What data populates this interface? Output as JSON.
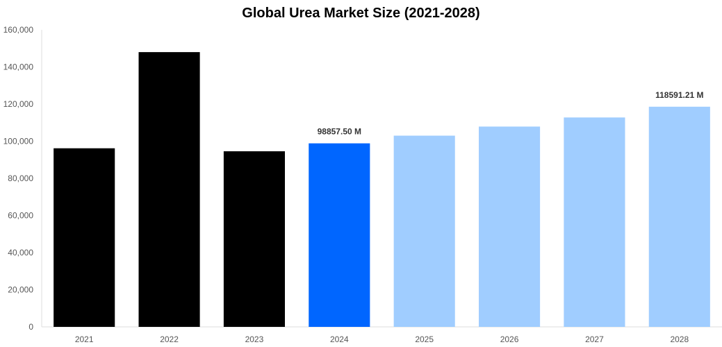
{
  "chart_data": {
    "type": "bar",
    "title": "Global Urea Market Size (2021-2028)",
    "xlabel": "",
    "ylabel": "",
    "categories": [
      "2021",
      "2022",
      "2023",
      "2024",
      "2025",
      "2026",
      "2027",
      "2028"
    ],
    "values": [
      96200,
      148000,
      94600,
      98857.5,
      103000,
      107900,
      112800,
      118591.21
    ],
    "bar_colors": [
      "#000000",
      "#000000",
      "#000000",
      "#0066ff",
      "#a0cdff",
      "#a0cdff",
      "#a0cdff",
      "#a0cdff"
    ],
    "data_labels": [
      {
        "category": "2024",
        "text": "98857.50 M"
      },
      {
        "category": "2028",
        "text": "118591.21 M"
      }
    ],
    "ylim": [
      0,
      160000
    ],
    "yticks": [
      0,
      20000,
      40000,
      60000,
      80000,
      100000,
      120000,
      140000,
      160000
    ],
    "ytick_labels": [
      "0",
      "20,000",
      "40,000",
      "60,000",
      "80,000",
      "100,000",
      "120,000",
      "140,000",
      "160,000"
    ],
    "grid": false,
    "legend": "none"
  }
}
